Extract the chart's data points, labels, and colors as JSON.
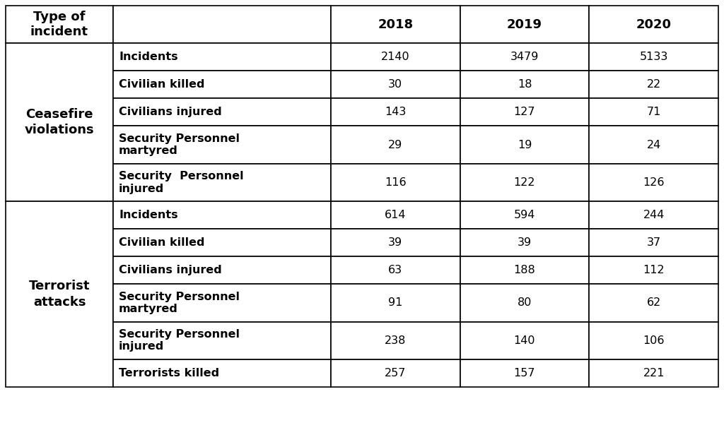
{
  "col_headers": [
    "Type of\nincident",
    "",
    "2018",
    "2019",
    "2020"
  ],
  "sections": [
    {
      "group_label": "Ceasefire\nviolations",
      "rows": [
        [
          "Incidents",
          "2140",
          "3479",
          "5133"
        ],
        [
          "Civilian killed",
          "30",
          "18",
          "22"
        ],
        [
          "Civilians injured",
          "143",
          "127",
          "71"
        ],
        [
          "Security Personnel\nmartyred",
          "29",
          "19",
          "24"
        ],
        [
          "Security  Personnel\ninjured",
          "116",
          "122",
          "126"
        ]
      ]
    },
    {
      "group_label": "Terrorist\nattacks",
      "rows": [
        [
          "Incidents",
          "614",
          "594",
          "244"
        ],
        [
          "Civilian killed",
          "39",
          "39",
          "37"
        ],
        [
          "Civilians injured",
          "63",
          "188",
          "112"
        ],
        [
          "Security Personnel\nmartyred",
          "91",
          "80",
          "62"
        ],
        [
          "Security Personnel\ninjured",
          "238",
          "140",
          "106"
        ],
        [
          "Terrorists killed",
          "257",
          "157",
          "221"
        ]
      ]
    }
  ],
  "bg_color": "#ffffff",
  "border_color": "#000000",
  "font_size": 11.5,
  "header_font_size": 13,
  "group_font_size": 13
}
